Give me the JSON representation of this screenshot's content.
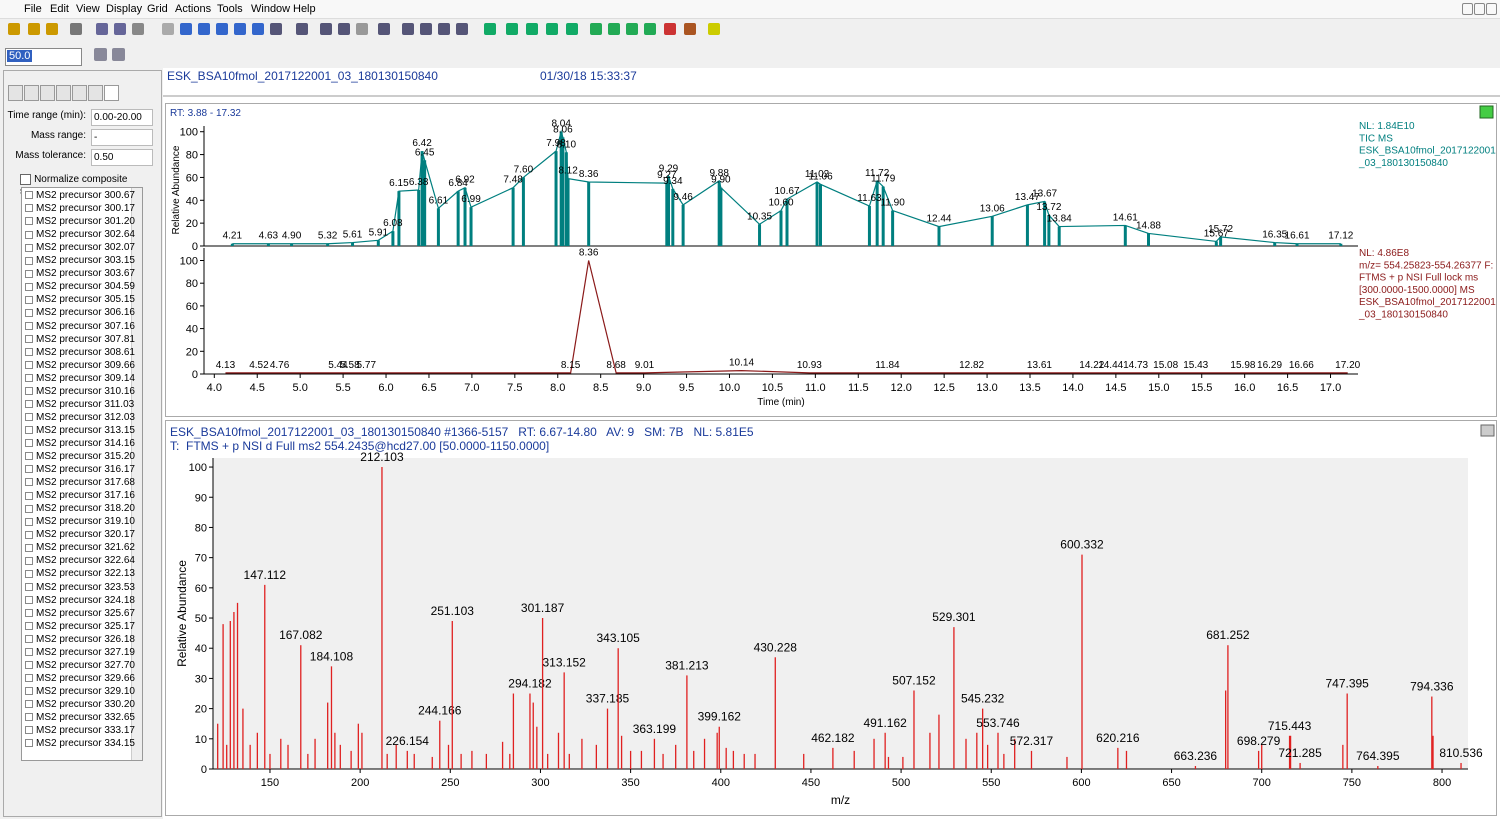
{
  "menu": [
    "File",
    "Edit",
    "View",
    "Display",
    "Grid",
    "Actions",
    "Tools",
    "Window",
    "Help"
  ],
  "toolbar": {
    "zoom": "50.0"
  },
  "left_panel": {
    "fields": [
      {
        "label": "Time range (min):",
        "value": "0.00-20.00"
      },
      {
        "label": "Mass range:",
        "value": "-"
      },
      {
        "label": "Mass tolerance:",
        "value": "0.50"
      }
    ],
    "checkbox": "Normalize composite spectrum",
    "list": [
      "MS2 precursor 300.67",
      "MS2 precursor 300.17",
      "MS2 precursor 301.20",
      "MS2 precursor 302.64",
      "MS2 precursor 302.07",
      "MS2 precursor 303.15",
      "MS2 precursor 303.67",
      "MS2 precursor 304.59",
      "MS2 precursor 305.15",
      "MS2 precursor 306.16",
      "MS2 precursor 307.16",
      "MS2 precursor 307.81",
      "MS2 precursor 308.61",
      "MS2 precursor 309.66",
      "MS2 precursor 309.14",
      "MS2 precursor 310.16",
      "MS2 precursor 311.03",
      "MS2 precursor 312.03",
      "MS2 precursor 313.15",
      "MS2 precursor 314.16",
      "MS2 precursor 315.20",
      "MS2 precursor 316.17",
      "MS2 precursor 317.68",
      "MS2 precursor 317.16",
      "MS2 precursor 318.20",
      "MS2 precursor 319.10",
      "MS2 precursor 320.17",
      "MS2 precursor 321.62",
      "MS2 precursor 322.64",
      "MS2 precursor 322.13",
      "MS2 precursor 323.53",
      "MS2 precursor 324.18",
      "MS2 precursor 325.67",
      "MS2 precursor 325.17",
      "MS2 precursor 326.18",
      "MS2 precursor 327.19",
      "MS2 precursor 327.70",
      "MS2 precursor 329.66",
      "MS2 precursor 329.10",
      "MS2 precursor 330.20",
      "MS2 precursor 332.65",
      "MS2 precursor 333.17",
      "MS2 precursor 334.15"
    ]
  },
  "header": {
    "file": "ESK_BSA10fmol_2017122001_03_180130150840",
    "date": "01/30/18 15:33:37"
  },
  "chart_data": [
    {
      "type": "sticks",
      "range_label": "RT: 3.88 - 17.32",
      "y_label": "Relative Abundance",
      "color": "#007f7f",
      "info": [
        "NL: 1.84E10",
        "TIC  MS",
        "ESK_BSA10fmol_2017122001",
        "_03_180130150840"
      ],
      "xlim": [
        3.88,
        17.32
      ],
      "ylim": [
        0,
        105
      ],
      "yticks": [
        0,
        20,
        40,
        60,
        80,
        100
      ],
      "x": [
        4.21,
        4.63,
        4.9,
        5.32,
        5.61,
        5.91,
        6.08,
        6.15,
        6.38,
        6.42,
        6.45,
        6.61,
        6.84,
        6.92,
        6.99,
        7.48,
        7.6,
        7.98,
        8.04,
        8.06,
        8.1,
        8.12,
        8.36,
        9.27,
        9.29,
        9.34,
        9.46,
        9.88,
        9.9,
        10.35,
        10.6,
        10.67,
        11.02,
        11.06,
        11.63,
        11.72,
        11.79,
        11.9,
        12.44,
        13.06,
        13.47,
        13.67,
        13.72,
        13.84,
        14.61,
        14.88,
        15.67,
        15.72,
        16.35,
        16.61,
        17.12
      ],
      "x_labels": [
        "4.21",
        "4.63",
        "4.90",
        "5.32",
        "5.61",
        "5.91",
        "6.08",
        "6.15",
        "6.38",
        "6.42",
        "6.45",
        "6.61",
        "6.84",
        "6.92",
        "6.99",
        "7.48",
        "7.60",
        "7.98",
        "8.04",
        "8.06",
        "8.10",
        "8.12",
        "8.36",
        "9.27",
        "9.29",
        "9.34",
        "9.46",
        "9.88",
        "9.90",
        "10.35",
        "10.60",
        "10.67",
        "11.02",
        "11.06",
        "11.63",
        "11.72",
        "11.79",
        "11.90",
        "12.44",
        "13.06",
        "13.47",
        "13.67",
        "13.72",
        "13.84",
        "14.61",
        "14.88",
        "15.67",
        "15.72",
        "16.35",
        "16.61",
        "17.12"
      ],
      "values": [
        2,
        2,
        2,
        2,
        3,
        5,
        13,
        48,
        49,
        83,
        75,
        33,
        48,
        51,
        34,
        51,
        60,
        83,
        100,
        95,
        82,
        59,
        56,
        55,
        61,
        50,
        36,
        57,
        51,
        19,
        31,
        41,
        56,
        54,
        35,
        57,
        52,
        31,
        17,
        26,
        36,
        39,
        27,
        17,
        18,
        11,
        4,
        8,
        3,
        2,
        2
      ]
    },
    {
      "type": "line",
      "x_label": "Time (min)",
      "color": "#8b1a1a",
      "info": [
        "NL: 4.86E8",
        "m/z= 554.25823-554.26377 F:",
        "FTMS + p NSI Full lock ms",
        "[300.0000-1500.0000] MS",
        "ESK_BSA10fmol_2017122001",
        "_03_180130150840"
      ],
      "xlim": [
        3.88,
        17.32
      ],
      "ylim": [
        0,
        111
      ],
      "yticks": [
        0,
        20,
        40,
        60,
        80,
        100
      ],
      "xticks": [
        {
          "value": 4,
          "label": "4.0"
        },
        4.5,
        {
          "value": 5,
          "label": "5.0"
        },
        5.5,
        {
          "value": 6,
          "label": "6.0"
        },
        6.5,
        {
          "value": 7,
          "label": "7.0"
        },
        7.5,
        {
          "value": 8,
          "label": "8.0"
        },
        8.5,
        {
          "value": 9,
          "label": "9.0"
        },
        9.5,
        {
          "value": 10,
          "label": "10.0"
        },
        10.5,
        {
          "value": 11,
          "label": "11.0"
        },
        11.5,
        {
          "value": 12,
          "label": "12.0"
        },
        12.5,
        {
          "value": 13,
          "label": "13.0"
        },
        13.5,
        {
          "value": 14,
          "label": "14.0"
        },
        14.5,
        {
          "value": 15,
          "label": "15.0"
        },
        15.5,
        {
          "value": 16,
          "label": "16.0"
        },
        16.5,
        {
          "value": 17,
          "label": "17.0"
        }
      ],
      "x": [
        4.13,
        4.52,
        4.76,
        5.44,
        5.58,
        5.77,
        8.15,
        8.36,
        8.68,
        9.01,
        10.14,
        10.93,
        11.84,
        12.82,
        13.61,
        14.22,
        14.44,
        14.73,
        15.08,
        15.43,
        15.98,
        16.29,
        16.66,
        17.2
      ],
      "x_labels": [
        "4.13",
        "4.52",
        "4.76",
        "5.44",
        "5.58",
        "5.77",
        "8.15",
        "8.36",
        "8.68",
        "9.01",
        "10.14",
        "10.93",
        "11.84",
        "12.82",
        "13.61",
        "14.22",
        "14.44",
        "14.73",
        "15.08",
        "15.43",
        "15.98",
        "16.29",
        "16.66",
        "17.20"
      ],
      "values": [
        1,
        1,
        1,
        1,
        1,
        1,
        1,
        100,
        1,
        1,
        3,
        1,
        1,
        1,
        1,
        1,
        1,
        1,
        1,
        1,
        1,
        1,
        1,
        1
      ]
    },
    {
      "type": "spectrum",
      "title": "ESK_BSA10fmol_2017122001_03_180130150840 #1366-5157   RT: 6.67-14.80   AV: 9   SM: 7B   NL: 5.81E5",
      "subtitle": "T:  FTMS + p NSI d Full ms2 554.2435@hcd27.00 [50.0000-1150.0000]",
      "x_label": "m/z",
      "y_label": "Relative Abundance",
      "color": "#e02020",
      "xlim": [
        118.4,
        814.4
      ],
      "ylim": [
        0,
        103
      ],
      "yticks": [
        0,
        10,
        20,
        30,
        40,
        50,
        60,
        70,
        80,
        90,
        100
      ],
      "xticks": [
        150,
        200,
        250,
        300,
        350,
        400,
        450,
        500,
        550,
        600,
        650,
        700,
        750,
        800
      ],
      "peaks": {
        "x": [
          147.112,
          167.082,
          184.108,
          212.103,
          226.154,
          244.166,
          251.103,
          294.182,
          301.187,
          313.152,
          337.185,
          343.105,
          363.199,
          381.213,
          399.162,
          430.228,
          462.182,
          491.162,
          507.152,
          529.301,
          545.232,
          553.746,
          572.317,
          600.332,
          620.216,
          663.236,
          681.252,
          698.279,
          715.443,
          721.285,
          747.395,
          764.395,
          794.336,
          810.536
        ],
        "values": [
          61,
          41,
          34,
          100,
          6,
          16,
          49,
          25,
          50,
          32,
          20,
          40,
          10,
          31,
          14,
          37,
          7,
          12,
          26,
          47,
          20,
          12,
          6,
          71,
          7,
          1,
          41,
          6,
          11,
          2,
          25,
          1,
          24,
          2
        ]
      },
      "minor_peaks": {
        "x": [
          121,
          124,
          126,
          128,
          130,
          132,
          135,
          139,
          143,
          150,
          156,
          160,
          171,
          175,
          182,
          186,
          189,
          195,
          199,
          201,
          215,
          220,
          230,
          240,
          249,
          256,
          262,
          270,
          279,
          283,
          285,
          296,
          298,
          304,
          310,
          316,
          323,
          331,
          345,
          350,
          356,
          368,
          375,
          385,
          391,
          398,
          403,
          407,
          413,
          419,
          446,
          474,
          485,
          493,
          501,
          516,
          521,
          536,
          542,
          548,
          557,
          563,
          592,
          625,
          680,
          700,
          716,
          745,
          795
        ],
        "values": [
          15,
          48,
          8,
          49,
          52,
          55,
          20,
          8,
          12,
          5,
          10,
          8,
          5,
          10,
          22,
          12,
          8,
          6,
          15,
          12,
          5,
          8,
          5,
          4,
          8,
          5,
          6,
          5,
          9,
          5,
          25,
          22,
          14,
          5,
          12,
          5,
          10,
          8,
          11,
          6,
          6,
          5,
          8,
          6,
          10,
          12,
          7,
          6,
          5,
          5,
          5,
          6,
          10,
          4,
          4,
          12,
          18,
          10,
          12,
          8,
          5,
          10,
          4,
          6,
          26,
          8,
          11,
          8,
          11
        ]
      }
    }
  ]
}
